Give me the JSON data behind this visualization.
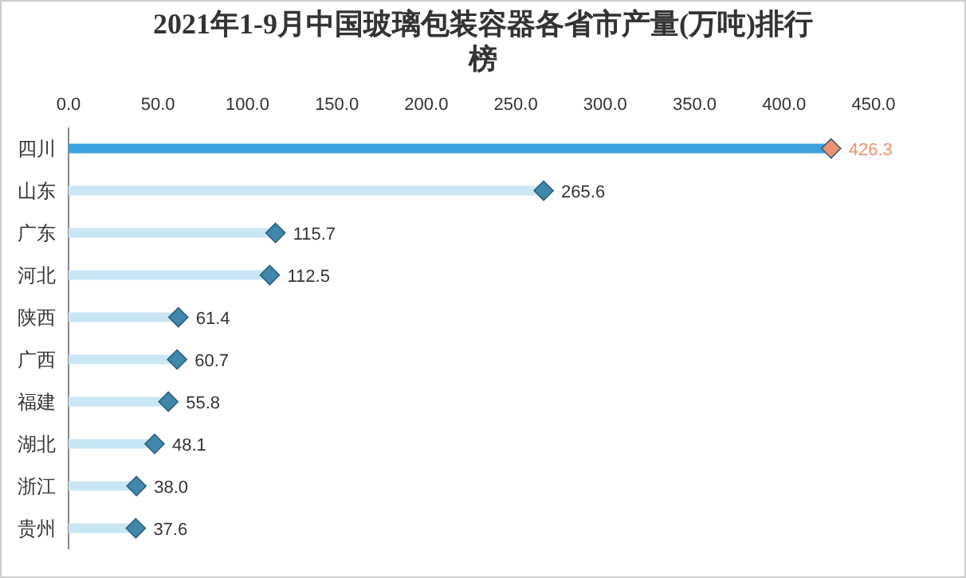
{
  "chart_data": {
    "type": "lollipop",
    "orientation": "horizontal",
    "title": "2021年1-9月中国玻璃包装容器各省市产量(万吨)排行榜",
    "categories": [
      "四川",
      "山东",
      "广东",
      "河北",
      "陕西",
      "广西",
      "福建",
      "湖北",
      "浙江",
      "贵州"
    ],
    "values": [
      426.3,
      265.6,
      115.7,
      112.5,
      61.4,
      60.7,
      55.8,
      48.1,
      38.0,
      37.6
    ],
    "colors": [
      "#f0906f",
      "#3f87ad",
      "#3f87ad",
      "#3f87ad",
      "#3f87ad",
      "#3f87ad",
      "#3f87ad",
      "#3f87ad",
      "#3f87ad",
      "#3f87ad"
    ],
    "xlim": [
      0,
      450
    ],
    "xticks": [
      {
        "value": 0,
        "label": "0.0"
      },
      {
        "value": 50,
        "label": "50.0"
      },
      {
        "value": 100,
        "label": "100.0"
      },
      {
        "value": 150,
        "label": "150.0"
      },
      {
        "value": 200,
        "label": "200.0"
      },
      {
        "value": 250,
        "label": "250.0"
      },
      {
        "value": 300,
        "label": "300.0"
      },
      {
        "value": 350,
        "label": "350.0"
      },
      {
        "value": 400,
        "label": "400.0"
      },
      {
        "value": 450,
        "label": "450.0"
      }
    ],
    "value_labels": [
      "426.3",
      "265.6",
      "115.7",
      "112.5",
      "61.4",
      "60.7",
      "55.8",
      "48.1",
      "38.0",
      "37.6"
    ],
    "marker": "diamond",
    "grid": false
  }
}
